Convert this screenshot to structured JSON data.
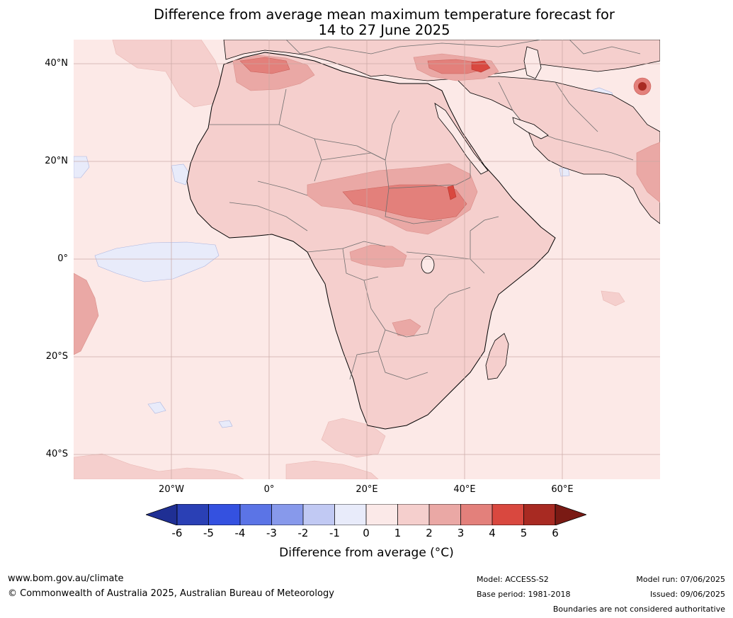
{
  "title": {
    "line1": "Difference from average mean maximum temperature forecast for",
    "line2": "14 to 27 June 2025"
  },
  "map": {
    "lat_labels": [
      "40°N",
      "20°N",
      "0°",
      "20°S",
      "40°S"
    ],
    "lon_labels": [
      "20°W",
      "0°",
      "20°E",
      "40°E",
      "60°E"
    ],
    "ocean_color": "#fce9e7",
    "land_color": "#f6d2cf",
    "border_color": "#555555"
  },
  "colorbar": {
    "ticks": [
      "-6",
      "-5",
      "-4",
      "-3",
      "-2",
      "-1",
      "0",
      "1",
      "2",
      "3",
      "4",
      "5",
      "6"
    ],
    "colors": [
      "#1f2f94",
      "#2a40b5",
      "#3451e0",
      "#5b74e6",
      "#8799eb",
      "#c1c9f3",
      "#e8ebfa",
      "#fbe9e8",
      "#f5cfcd",
      "#eaa8a5",
      "#e3807b",
      "#d9483f",
      "#a82a22",
      "#7a1a14"
    ],
    "label": "Difference from average (°C)"
  },
  "footer": {
    "url": "www.bom.gov.au/climate",
    "copyright": "© Commonwealth of Australia 2025, Australian Bureau of Meteorology",
    "model": "Model: ACCESS-S2",
    "base_period": "Base period: 1981-2018",
    "model_run": "Model run: 07/06/2025",
    "issued": "Issued: 09/06/2025",
    "disclaimer": "Boundaries are not considered authoritative"
  }
}
